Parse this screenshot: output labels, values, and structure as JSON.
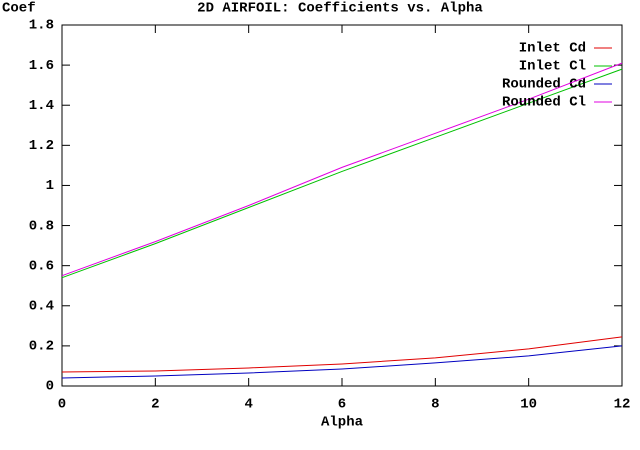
{
  "chart_data": {
    "type": "line",
    "title": "2D AIRFOIL: Coefficients vs. Alpha",
    "x_label": "Alpha",
    "y_label": "Coef",
    "x": [
      0,
      2,
      4,
      6,
      8,
      10,
      12
    ],
    "series": [
      {
        "name": "Inlet Cd",
        "color": "#e00000",
        "values": [
          0.07,
          0.075,
          0.09,
          0.11,
          0.14,
          0.185,
          0.245
        ]
      },
      {
        "name": "Inlet Cl",
        "color": "#00c000",
        "values": [
          0.54,
          0.71,
          0.89,
          1.07,
          1.24,
          1.41,
          1.58
        ]
      },
      {
        "name": "Rounded Cd",
        "color": "#0000c0",
        "values": [
          0.04,
          0.05,
          0.065,
          0.085,
          0.115,
          0.15,
          0.2
        ]
      },
      {
        "name": "Rounded Cl",
        "color": "#e000e0",
        "values": [
          0.55,
          0.72,
          0.9,
          1.09,
          1.26,
          1.43,
          1.61
        ]
      }
    ],
    "xlim": [
      0,
      12
    ],
    "xticks": [
      0,
      2,
      4,
      6,
      8,
      10,
      12
    ],
    "ylim": [
      0,
      1.8
    ],
    "yticks": [
      0,
      0.2,
      0.4,
      0.6,
      0.8,
      1,
      1.2,
      1.4,
      1.6,
      1.8
    ],
    "legend": "upper-right"
  }
}
